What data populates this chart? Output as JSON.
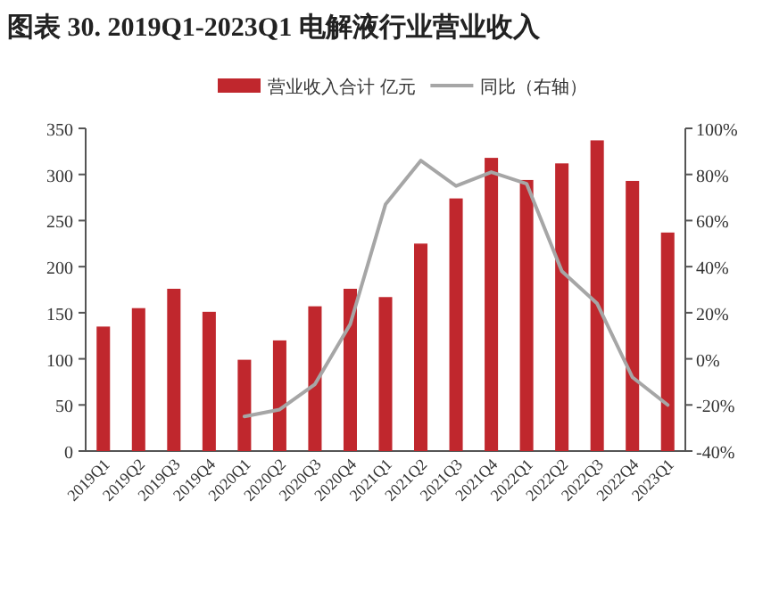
{
  "chart_data": {
    "type": "bar",
    "title": "图表 30. 2019Q1-2023Q1 电解液行业营业收入",
    "categories": [
      "2019Q1",
      "2019Q2",
      "2019Q3",
      "2019Q4",
      "2020Q1",
      "2020Q2",
      "2020Q3",
      "2020Q4",
      "2021Q1",
      "2021Q2",
      "2021Q3",
      "2021Q4",
      "2022Q1",
      "2022Q2",
      "2022Q3",
      "2022Q4",
      "2023Q1"
    ],
    "series": [
      {
        "name": "营业收入合计 亿元",
        "color": "#c0272d",
        "values": [
          135,
          155,
          176,
          151,
          99,
          120,
          157,
          176,
          167,
          225,
          274,
          318,
          294,
          312,
          337,
          293,
          237
        ]
      },
      {
        "name": "同比（右轴）",
        "type": "line",
        "axis": "y2",
        "color": "#a6a6a6",
        "values": [
          null,
          null,
          null,
          null,
          -25,
          -22,
          -11,
          15,
          67,
          86,
          75,
          81,
          76,
          38,
          24,
          -8,
          -20
        ]
      }
    ],
    "ylim": [
      0,
      350
    ],
    "yticks": [
      0,
      50,
      100,
      150,
      200,
      250,
      300,
      350
    ],
    "y2lim": [
      -40,
      100
    ],
    "y2ticks": [
      {
        "value": -40,
        "label": "-40%"
      },
      {
        "value": -20,
        "label": "-20%"
      },
      {
        "value": 0,
        "label": "0%"
      },
      {
        "value": 20,
        "label": "20%"
      },
      {
        "value": 40,
        "label": "40%"
      },
      {
        "value": 60,
        "label": "60%"
      },
      {
        "value": 80,
        "label": "80%"
      },
      {
        "value": 100,
        "label": "100%"
      }
    ],
    "legend": "top",
    "grid": false
  }
}
